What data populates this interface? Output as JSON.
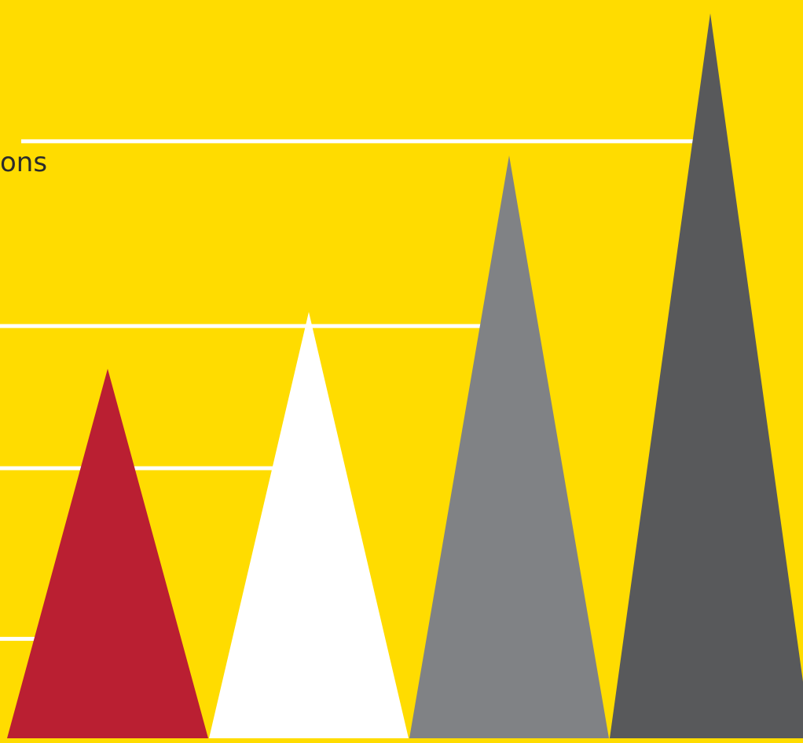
{
  "chart_data": {
    "type": "bar",
    "mark_shape": "triangle",
    "unit_label": "ons",
    "categories": [
      "",
      "",
      "",
      ""
    ],
    "values": [
      2.6,
      3.0,
      4.1,
      5.1
    ],
    "ylim": [
      0,
      5.15
    ],
    "gridline_values": [
      0.7,
      1.9,
      2.9,
      4.2
    ],
    "grid": true,
    "legend": "none",
    "colors": {
      "background": "#FFDC00",
      "gridline": "#FFFFFF",
      "text": "#2B2B2B",
      "bars": [
        "#BA1F32",
        "#FFFFFF",
        "#808285",
        "#58595B"
      ]
    }
  }
}
